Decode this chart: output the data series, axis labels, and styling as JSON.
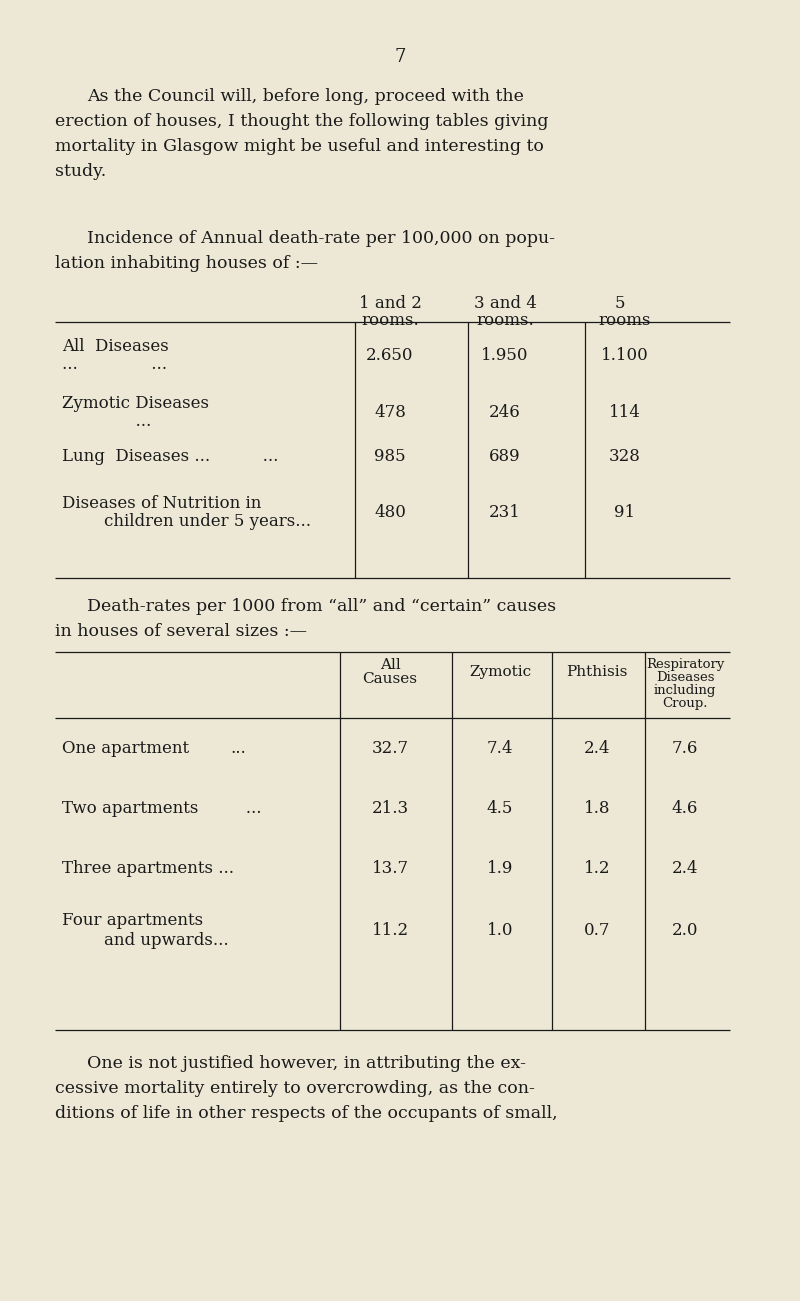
{
  "bg_color": "#ede8d5",
  "text_color": "#1a1a1a",
  "page_number": "7",
  "intro_text_line1": "As the Council will, before long, proceed with the",
  "intro_text_line2": "erection of houses, I thought the following tables giving",
  "intro_text_line3": "mortality in Glasgow might be useful and interesting to",
  "intro_text_line4": "study.",
  "s1_line1": "Incidence of Annual death-rate per 100,000 on popu-",
  "s1_line2": "lation inhabiting houses of :—",
  "t1_hdr1a": "1 and 2",
  "t1_hdr1b": "rooms.",
  "t1_hdr2a": "3 and 4",
  "t1_hdr2b": "rooms.",
  "t1_hdr3a": "5  ",
  "t1_hdr3b": "rooms",
  "t1_r1_la": "All  Diseases",
  "t1_r1_lb": "...              ...",
  "t1_r1_v1": "2.650",
  "t1_r1_v2": "1.950",
  "t1_r1_v3": "1.100",
  "t1_r2_la": "Zymotic Diseases",
  "t1_r2_lb": "              ...",
  "t1_r2_v1": "478",
  "t1_r2_v2": "246",
  "t1_r2_v3": "114",
  "t1_r3_la": "Lung  Diseases ...          ...",
  "t1_r3_v1": "985",
  "t1_r3_v2": "689",
  "t1_r3_v3": "328",
  "t1_r4_la": "Diseases of Nutrition in",
  "t1_r4_lb": "        children under 5 years...",
  "t1_r4_v1": "480",
  "t1_r4_v2": "231",
  "t1_r4_v3": "91",
  "s2_line1": "Death-rates per 1000 from “all” and “certain” causes",
  "s2_line2": "in houses of several sizes :—",
  "t2_h1a": "All",
  "t2_h1b": "Causes",
  "t2_h2": "Zymotic",
  "t2_h3": "Phthisis",
  "t2_h4a": "Respiratory",
  "t2_h4b": "Diseases",
  "t2_h4c": "including",
  "t2_h4d": "Croup.",
  "t2_r1_la": "One apartment",
  "t2_r1_lb": "...",
  "t2_r1_v1": "32.7",
  "t2_r1_v2": "7.4",
  "t2_r1_v3": "2.4",
  "t2_r1_v4": "7.6",
  "t2_r2_la": "Two apartments",
  "t2_r2_lb": "   ...",
  "t2_r2_v1": "21.3",
  "t2_r2_v2": "4.5",
  "t2_r2_v3": "1.8",
  "t2_r2_v4": "4.6",
  "t2_r3_la": "Three apartments ...",
  "t2_r3_v1": "13.7",
  "t2_r3_v2": "1.9",
  "t2_r3_v3": "1.2",
  "t2_r3_v4": "2.4",
  "t2_r4_la": "Four apartments",
  "t2_r4_lb": "        and upwards...",
  "t2_r4_v1": "11.2",
  "t2_r4_v2": "1.0",
  "t2_r4_v3": "0.7",
  "t2_r4_v4": "2.0",
  "foot1": "One is not justified however, in attributing the ex-",
  "foot2": "cessive mortality entirely to overcrowding, as the con-",
  "foot3": "ditions of life in other respects of the occupants of small,"
}
